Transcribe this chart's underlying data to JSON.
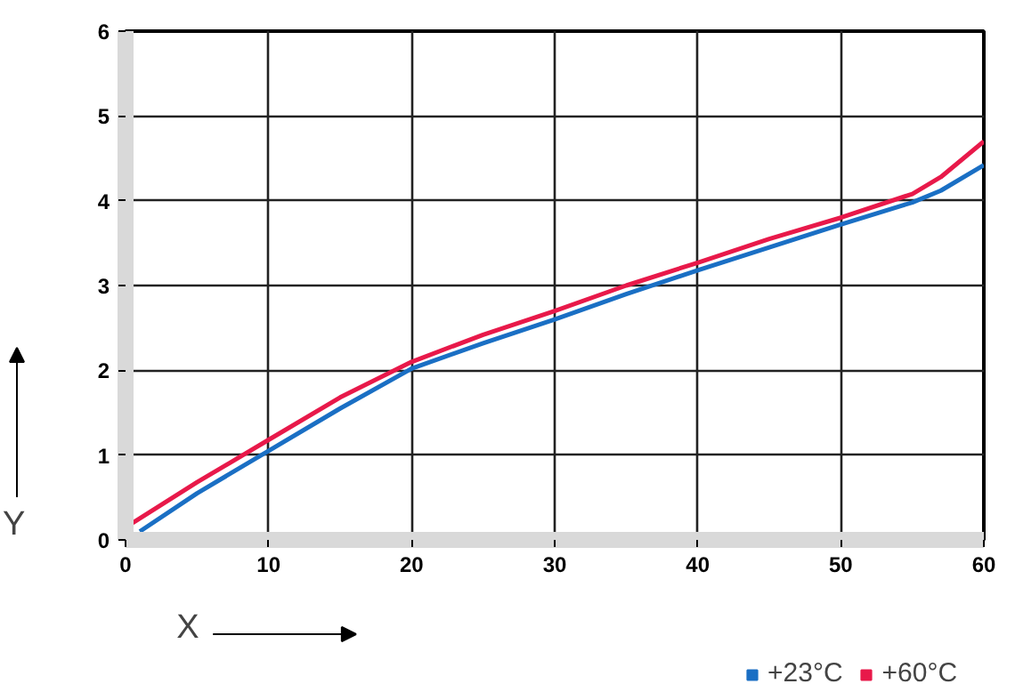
{
  "chart_data": {
    "type": "line",
    "xlabel": "X",
    "ylabel": "Y",
    "x": [
      1,
      5,
      10,
      15,
      20,
      25,
      30,
      35,
      40,
      45,
      50,
      55,
      57,
      60
    ],
    "series": [
      {
        "name": "+23°C",
        "color": "#1a6fc4",
        "values": [
          0.1,
          0.55,
          1.05,
          1.55,
          2.02,
          2.32,
          2.6,
          2.9,
          3.18,
          3.45,
          3.72,
          3.98,
          4.12,
          4.42
        ]
      },
      {
        "name": "+60°C",
        "color": "#e8194a",
        "x": [
          0.5,
          5,
          10,
          15,
          20,
          25,
          30,
          35,
          40,
          45,
          50,
          55,
          57,
          60
        ],
        "values": [
          0.2,
          0.68,
          1.18,
          1.68,
          2.1,
          2.42,
          2.7,
          3.0,
          3.27,
          3.55,
          3.8,
          4.08,
          4.28,
          4.7
        ]
      }
    ],
    "xlim": [
      0,
      60
    ],
    "ylim": [
      0,
      6
    ],
    "xticks": [
      0,
      10,
      20,
      30,
      40,
      50,
      60
    ],
    "yticks": [
      0,
      1,
      2,
      3,
      4,
      5,
      6
    ],
    "grid": true,
    "legend": "bottom right"
  }
}
